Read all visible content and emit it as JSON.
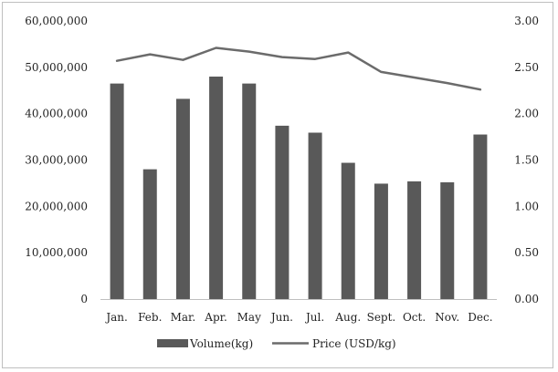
{
  "chart_data": {
    "type": "bar+line",
    "categories": [
      "Jan.",
      "Feb.",
      "Mar.",
      "Apr.",
      "May",
      "Jun.",
      "Jul.",
      "Aug.",
      "Sept.",
      "Oct.",
      "Nov.",
      "Dec."
    ],
    "series": [
      {
        "name": "Volume(kg)",
        "type": "bar",
        "axis": "left",
        "color": "#595959",
        "values": [
          46500000,
          28000000,
          43200000,
          48000000,
          46500000,
          37400000,
          35900000,
          29400000,
          24900000,
          25400000,
          25200000,
          35500000
        ]
      },
      {
        "name": "Price (USD/kg)",
        "type": "line",
        "axis": "right",
        "color": "#6b6b6b",
        "values": [
          2.57,
          2.64,
          2.58,
          2.71,
          2.67,
          2.61,
          2.59,
          2.66,
          2.45,
          2.39,
          2.33,
          2.26
        ]
      }
    ],
    "y_left": {
      "min": 0,
      "max": 60000000,
      "ticks": [
        0,
        10000000,
        20000000,
        30000000,
        40000000,
        50000000,
        60000000
      ],
      "tick_labels": [
        "0",
        "10,000,000",
        "20,000,000",
        "30,000,000",
        "40,000,000",
        "50,000,000",
        "60,000,000"
      ]
    },
    "y_right": {
      "min": 0,
      "max": 3,
      "ticks": [
        0,
        0.5,
        1,
        1.5,
        2,
        2.5,
        3
      ],
      "tick_labels": [
        "0.00",
        "0.50",
        "1.00",
        "1.50",
        "2.00",
        "2.50",
        "3.00"
      ]
    },
    "grid": false,
    "legend": {
      "position": "bottom",
      "entries": [
        "Volume(kg)",
        "Price (USD/kg)"
      ]
    }
  }
}
